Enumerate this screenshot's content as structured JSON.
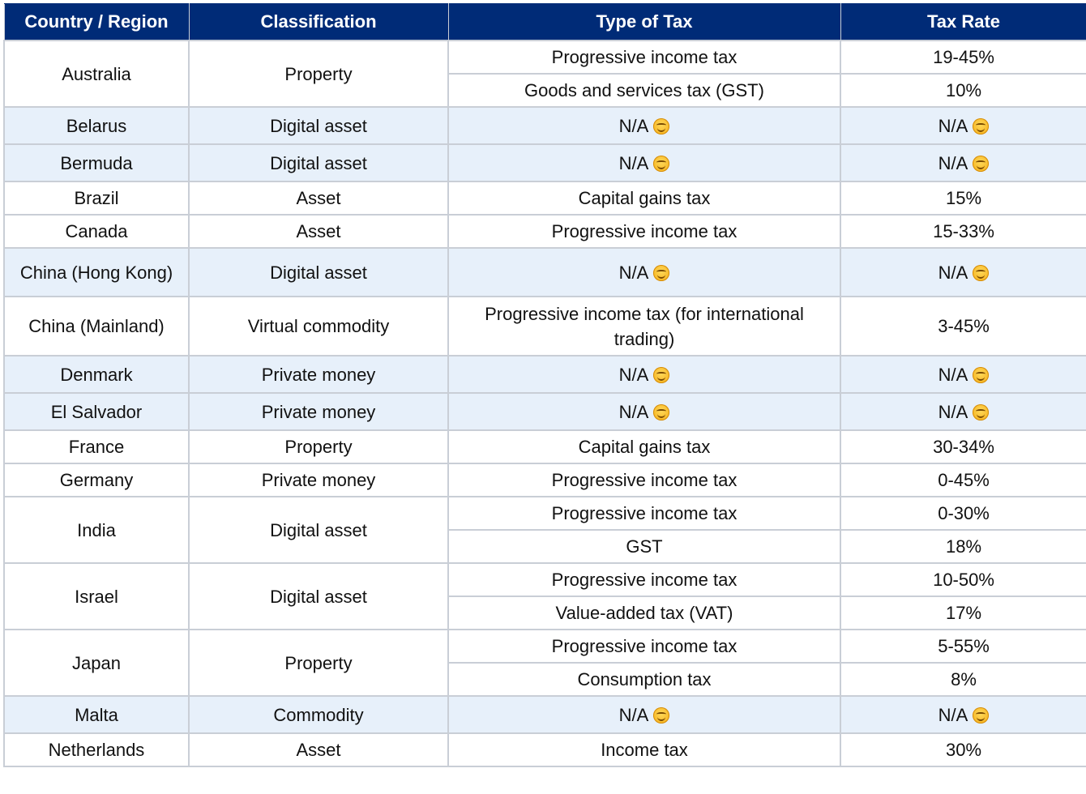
{
  "header": {
    "col1": "Country / Region",
    "col2": "Classification",
    "col3": "Type of Tax",
    "col4": "Tax Rate"
  },
  "rows": [
    {
      "country": "Australia",
      "classification": "Property",
      "taxes": [
        {
          "type": "Progressive income tax",
          "rate": "19-45%"
        },
        {
          "type": "Goods and services tax (GST)",
          "rate": "10%"
        }
      ]
    },
    {
      "country": "Belarus",
      "classification": "Digital asset",
      "taxes": [
        {
          "type": "N/A",
          "rate": "N/A",
          "emoji": true
        }
      ]
    },
    {
      "country": "Bermuda",
      "classification": "Digital asset",
      "taxes": [
        {
          "type": "N/A",
          "rate": "N/A",
          "emoji": true
        }
      ]
    },
    {
      "country": "Brazil",
      "classification": "Asset",
      "taxes": [
        {
          "type": "Capital gains tax",
          "rate": "15%"
        }
      ]
    },
    {
      "country": "Canada",
      "classification": "Asset",
      "taxes": [
        {
          "type": "Progressive income tax",
          "rate": "15-33%"
        }
      ]
    },
    {
      "country": "China (Hong Kong)",
      "classification": "Digital asset",
      "taxes": [
        {
          "type": "N/A",
          "rate": "N/A",
          "emoji": true
        }
      ]
    },
    {
      "country": "China (Mainland)",
      "classification": "Virtual commodity",
      "taxes": [
        {
          "type": "Progressive income tax (for international trading)",
          "rate": "3-45%"
        }
      ]
    },
    {
      "country": "Denmark",
      "classification": "Private money",
      "taxes": [
        {
          "type": "N/A",
          "rate": "N/A",
          "emoji": true
        }
      ]
    },
    {
      "country": "El Salvador",
      "classification": "Private money",
      "taxes": [
        {
          "type": "N/A",
          "rate": "N/A",
          "emoji": true
        }
      ]
    },
    {
      "country": "France",
      "classification": "Property",
      "taxes": [
        {
          "type": "Capital gains tax",
          "rate": "30-34%"
        }
      ]
    },
    {
      "country": "Germany",
      "classification": "Private money",
      "taxes": [
        {
          "type": "Progressive income tax",
          "rate": "0-45%"
        }
      ]
    },
    {
      "country": "India",
      "classification": "Digital asset",
      "taxes": [
        {
          "type": "Progressive income tax",
          "rate": "0-30%"
        },
        {
          "type": "GST",
          "rate": "18%"
        }
      ]
    },
    {
      "country": "Israel",
      "classification": "Digital asset",
      "taxes": [
        {
          "type": "Progressive income tax",
          "rate": "10-50%"
        },
        {
          "type": "Value-added tax (VAT)",
          "rate": "17%"
        }
      ]
    },
    {
      "country": "Japan",
      "classification": "Property",
      "taxes": [
        {
          "type": "Progressive income tax",
          "rate": "5-55%"
        },
        {
          "type": "Consumption tax",
          "rate": "8%"
        }
      ]
    },
    {
      "country": "Malta",
      "classification": "Commodity",
      "taxes": [
        {
          "type": "N/A",
          "rate": "N/A",
          "emoji": true
        }
      ]
    },
    {
      "country": "Netherlands",
      "classification": "Asset",
      "taxes": [
        {
          "type": "Income tax",
          "rate": "30%"
        }
      ]
    }
  ],
  "icons": {
    "na_emoji": "smiling-face-icon"
  },
  "colors": {
    "header_bg": "#002b77",
    "na_row_bg": "#e7f0fa",
    "grid": "#c9ced6"
  }
}
